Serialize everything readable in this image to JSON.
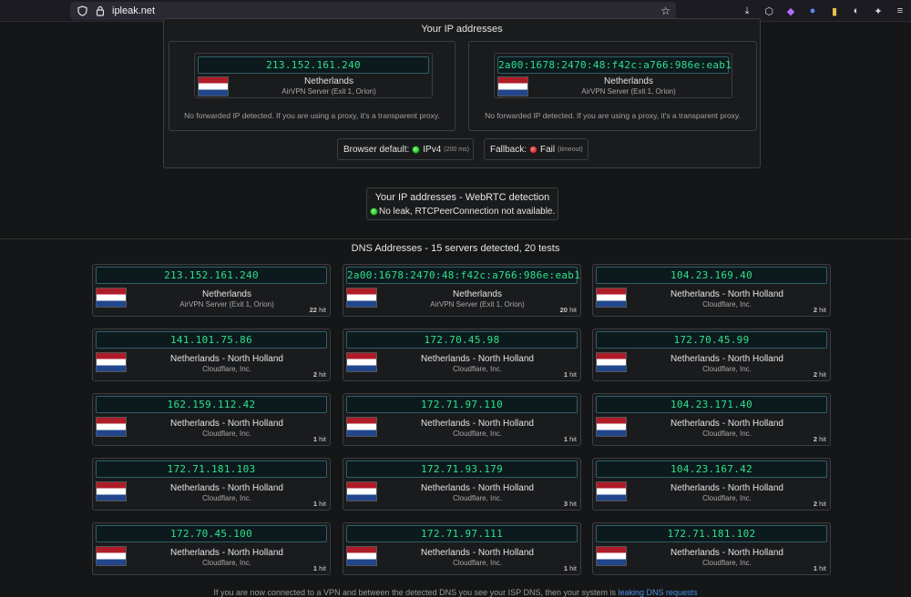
{
  "browser": {
    "url": "ipleak.net"
  },
  "ip_section": {
    "title": "Your IP addresses",
    "cards": [
      {
        "ip": "213.152.161.240",
        "country": "Netherlands",
        "isp": "AirVPN Server (Exit 1, Orion)",
        "note": "No forwarded IP detected. If you are using a proxy, it's a transparent proxy."
      },
      {
        "ip": "2a00:1678:2470:48:f42c:a766:986e:eab1",
        "country": "Netherlands",
        "isp": "AirVPN Server (Exit 1, Orion)",
        "note": "No forwarded IP detected. If you are using a proxy, it's a transparent proxy."
      }
    ],
    "browser_default_label": "Browser default:",
    "browser_default_value": "IPv4",
    "browser_default_time": "(200 ms)",
    "fallback_label": "Fallback:",
    "fallback_value": "Fail",
    "fallback_time": "(timeout)"
  },
  "webrtc": {
    "title": "Your IP addresses - WebRTC detection",
    "status": "No leak, RTCPeerConnection not available."
  },
  "dns": {
    "title": "DNS Addresses - 15 servers detected, 20 tests",
    "hit_label": "hit",
    "servers": [
      {
        "ip": "213.152.161.240",
        "country": "Netherlands",
        "isp": "AirVPN Server (Exit 1, Orion)",
        "hits": "22"
      },
      {
        "ip": "2a00:1678:2470:48:f42c:a766:986e:eab1",
        "country": "Netherlands",
        "isp": "AirVPN Server (Exit 1, Orion)",
        "hits": "20"
      },
      {
        "ip": "104.23.169.40",
        "country": "Netherlands - North Holland",
        "isp": "Cloudflare, Inc.",
        "hits": "2"
      },
      {
        "ip": "141.101.75.86",
        "country": "Netherlands - North Holland",
        "isp": "Cloudflare, Inc.",
        "hits": "2"
      },
      {
        "ip": "172.70.45.98",
        "country": "Netherlands - North Holland",
        "isp": "Cloudflare, Inc.",
        "hits": "1"
      },
      {
        "ip": "172.70.45.99",
        "country": "Netherlands - North Holland",
        "isp": "Cloudflare, Inc.",
        "hits": "2"
      },
      {
        "ip": "162.159.112.42",
        "country": "Netherlands - North Holland",
        "isp": "Cloudflare, Inc.",
        "hits": "1"
      },
      {
        "ip": "172.71.97.110",
        "country": "Netherlands - North Holland",
        "isp": "Cloudflare, Inc.",
        "hits": "1"
      },
      {
        "ip": "104.23.171.40",
        "country": "Netherlands - North Holland",
        "isp": "Cloudflare, Inc.",
        "hits": "2"
      },
      {
        "ip": "172.71.181.103",
        "country": "Netherlands - North Holland",
        "isp": "Cloudflare, Inc.",
        "hits": "1"
      },
      {
        "ip": "172.71.93.179",
        "country": "Netherlands - North Holland",
        "isp": "Cloudflare, Inc.",
        "hits": "3"
      },
      {
        "ip": "104.23.167.42",
        "country": "Netherlands - North Holland",
        "isp": "Cloudflare, Inc.",
        "hits": "2"
      },
      {
        "ip": "172.70.45.100",
        "country": "Netherlands - North Holland",
        "isp": "Cloudflare, Inc.",
        "hits": "1"
      },
      {
        "ip": "172.71.97.111",
        "country": "Netherlands - North Holland",
        "isp": "Cloudflare, Inc.",
        "hits": "1"
      },
      {
        "ip": "172.71.181.102",
        "country": "Netherlands - North Holland",
        "isp": "Cloudflare, Inc.",
        "hits": "1"
      }
    ]
  },
  "footer": {
    "text": "If you are now connected to a VPN and between the detected DNS you see your ISP DNS, then your system is ",
    "link": "leaking DNS requests"
  },
  "icons": {
    "page_info": "shield-icon",
    "lock": "lock-icon",
    "bookmark": "star-icon",
    "toolbar": [
      "download-icon",
      "extensions-icon",
      "extension-purple-icon",
      "extension-blue-icon",
      "extension-yellow-icon",
      "extension-mask-icon",
      "extension-puzzle-icon",
      "menu-icon"
    ]
  },
  "colors": {
    "ip_text": "#2fe08a",
    "status_ok": "#16a316",
    "status_fail": "#b01616",
    "link": "#4a90e2"
  }
}
